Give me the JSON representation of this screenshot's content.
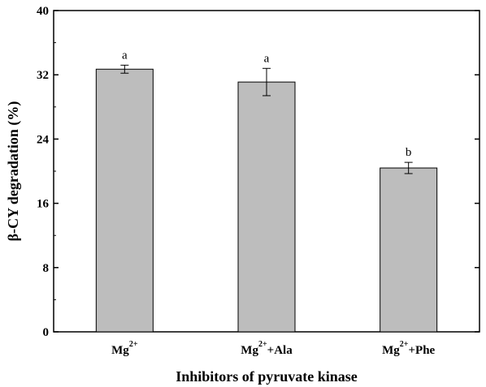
{
  "chart_data": {
    "type": "bar",
    "categories": [
      {
        "base": "Mg",
        "sup": "2+",
        "suffix": ""
      },
      {
        "base": "Mg",
        "sup": "2+",
        "suffix": "+Ala"
      },
      {
        "base": "Mg",
        "sup": "2+",
        "suffix": "+Phe"
      }
    ],
    "values": [
      32.7,
      31.1,
      20.4
    ],
    "errors": [
      0.5,
      1.7,
      0.7
    ],
    "significance_letters": [
      "a",
      "a",
      "b"
    ],
    "xlabel": "Inhibitors of pyruvate kinase",
    "ylabel": "β-CY  degradation (%)",
    "ylim": [
      0,
      40
    ],
    "yticks": [
      0,
      8,
      16,
      24,
      32,
      40
    ],
    "ytick_labels": [
      "0",
      "8",
      "16",
      "24",
      "32",
      "40"
    ],
    "bar_color": "#bdbdbd",
    "edge_color": "#000000",
    "grid": false,
    "legend": "none"
  }
}
